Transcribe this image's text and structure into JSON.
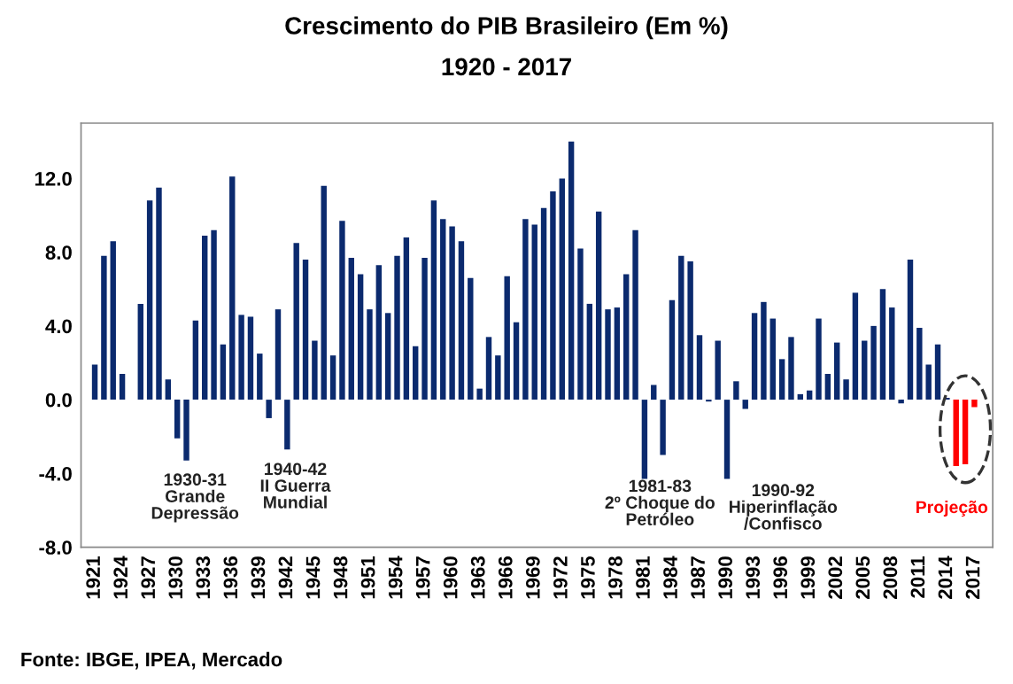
{
  "chart_data": {
    "type": "bar",
    "title": "Crescimento do PIB Brasileiro (Em %)",
    "subtitle": "1920 - 2017",
    "x": [
      1921,
      1922,
      1923,
      1924,
      1925,
      1926,
      1927,
      1928,
      1929,
      1930,
      1931,
      1932,
      1933,
      1934,
      1935,
      1936,
      1937,
      1938,
      1939,
      1940,
      1941,
      1942,
      1943,
      1944,
      1945,
      1946,
      1947,
      1948,
      1949,
      1950,
      1951,
      1952,
      1953,
      1954,
      1955,
      1956,
      1957,
      1958,
      1959,
      1960,
      1961,
      1962,
      1963,
      1964,
      1965,
      1966,
      1967,
      1968,
      1969,
      1970,
      1971,
      1972,
      1973,
      1974,
      1975,
      1976,
      1977,
      1978,
      1979,
      1980,
      1981,
      1982,
      1983,
      1984,
      1985,
      1986,
      1987,
      1988,
      1989,
      1990,
      1991,
      1992,
      1993,
      1994,
      1995,
      1996,
      1997,
      1998,
      1999,
      2000,
      2001,
      2002,
      2003,
      2004,
      2005,
      2006,
      2007,
      2008,
      2009,
      2010,
      2011,
      2012,
      2013,
      2014,
      2015,
      2016,
      2017
    ],
    "values": [
      1.9,
      7.8,
      8.6,
      1.4,
      0.0,
      5.2,
      10.8,
      11.5,
      1.1,
      -2.1,
      -3.3,
      4.3,
      8.9,
      9.2,
      3.0,
      12.1,
      4.6,
      4.5,
      2.5,
      -1.0,
      4.9,
      -2.7,
      8.5,
      7.6,
      3.2,
      11.6,
      2.4,
      9.7,
      7.7,
      6.8,
      4.9,
      7.3,
      4.7,
      7.8,
      8.8,
      2.9,
      7.7,
      10.8,
      9.8,
      9.4,
      8.6,
      6.6,
      0.6,
      3.4,
      2.4,
      6.7,
      4.2,
      9.8,
      9.5,
      10.4,
      11.3,
      12.0,
      14.0,
      8.2,
      5.2,
      10.2,
      4.9,
      5.0,
      6.8,
      9.2,
      -4.3,
      0.8,
      -3.0,
      5.4,
      7.8,
      7.5,
      3.5,
      -0.1,
      3.2,
      -4.3,
      1.0,
      -0.5,
      4.7,
      5.3,
      4.4,
      2.2,
      3.4,
      0.3,
      0.5,
      4.4,
      1.4,
      3.1,
      1.1,
      5.8,
      3.2,
      4.0,
      6.0,
      5.0,
      -0.2,
      7.6,
      3.9,
      1.9,
      3.0,
      0.1,
      -3.6,
      -3.5,
      -0.4
    ],
    "colors": [
      "#0b2a6e",
      "#0b2a6e",
      "#0b2a6e",
      "#0b2a6e",
      "#0b2a6e",
      "#0b2a6e",
      "#0b2a6e",
      "#0b2a6e",
      "#0b2a6e",
      "#0b2a6e",
      "#0b2a6e",
      "#0b2a6e",
      "#0b2a6e",
      "#0b2a6e",
      "#0b2a6e",
      "#0b2a6e",
      "#0b2a6e",
      "#0b2a6e",
      "#0b2a6e",
      "#0b2a6e",
      "#0b2a6e",
      "#0b2a6e",
      "#0b2a6e",
      "#0b2a6e",
      "#0b2a6e",
      "#0b2a6e",
      "#0b2a6e",
      "#0b2a6e",
      "#0b2a6e",
      "#0b2a6e",
      "#0b2a6e",
      "#0b2a6e",
      "#0b2a6e",
      "#0b2a6e",
      "#0b2a6e",
      "#0b2a6e",
      "#0b2a6e",
      "#0b2a6e",
      "#0b2a6e",
      "#0b2a6e",
      "#0b2a6e",
      "#0b2a6e",
      "#0b2a6e",
      "#0b2a6e",
      "#0b2a6e",
      "#0b2a6e",
      "#0b2a6e",
      "#0b2a6e",
      "#0b2a6e",
      "#0b2a6e",
      "#0b2a6e",
      "#0b2a6e",
      "#0b2a6e",
      "#0b2a6e",
      "#0b2a6e",
      "#0b2a6e",
      "#0b2a6e",
      "#0b2a6e",
      "#0b2a6e",
      "#0b2a6e",
      "#0b2a6e",
      "#0b2a6e",
      "#0b2a6e",
      "#0b2a6e",
      "#0b2a6e",
      "#0b2a6e",
      "#0b2a6e",
      "#0b2a6e",
      "#0b2a6e",
      "#0b2a6e",
      "#0b2a6e",
      "#0b2a6e",
      "#0b2a6e",
      "#0b2a6e",
      "#0b2a6e",
      "#0b2a6e",
      "#0b2a6e",
      "#0b2a6e",
      "#0b2a6e",
      "#0b2a6e",
      "#0b2a6e",
      "#0b2a6e",
      "#0b2a6e",
      "#0b2a6e",
      "#0b2a6e",
      "#0b2a6e",
      "#0b2a6e",
      "#0b2a6e",
      "#0b2a6e",
      "#0b2a6e",
      "#0b2a6e",
      "#0b2a6e",
      "#0b2a6e",
      "#0b2a6e",
      "#ff0000",
      "#ff0000",
      "#ff0000"
    ],
    "xlim": [
      1919.5,
      2019
    ],
    "xticks": [
      1921,
      1924,
      1927,
      1930,
      1933,
      1936,
      1939,
      1942,
      1945,
      1948,
      1951,
      1954,
      1957,
      1960,
      1963,
      1966,
      1969,
      1972,
      1975,
      1978,
      1981,
      1984,
      1987,
      1990,
      1993,
      1996,
      1999,
      2002,
      2005,
      2008,
      2011,
      2014,
      2017
    ],
    "ylim": [
      -8,
      15
    ],
    "yticks": [
      {
        "value": -8,
        "label": "-8.0"
      },
      {
        "value": -4,
        "label": "-4.0"
      },
      {
        "value": 0,
        "label": "0.0"
      },
      {
        "value": 4,
        "label": "4.0"
      },
      {
        "value": 8,
        "label": "8.0"
      },
      {
        "value": 12,
        "label": "12.0"
      }
    ],
    "grid": false,
    "legend": false,
    "annotations": [
      "1930-31\nGrande\nDepressão",
      "1940-42\nII Guerra\nMundial",
      "1981-83\n2º Choque do\nPetróleo",
      "1990-92\nHiperinflação\n/Confisco",
      "Projeção",
      "Fonte: IBGE, IPEA, Mercado"
    ]
  }
}
